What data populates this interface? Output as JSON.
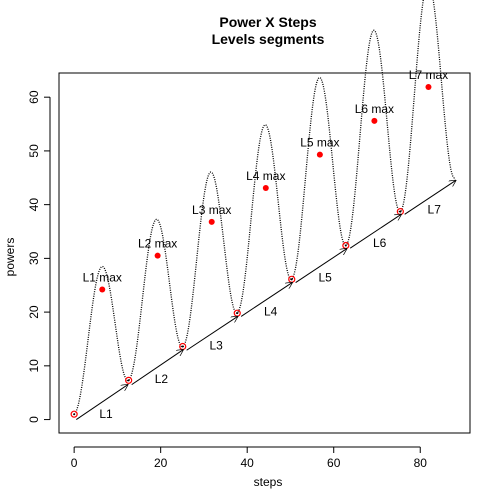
{
  "chart_data": {
    "type": "line",
    "title": "Power X Steps",
    "subtitle": "Levels segments",
    "xlabel": "steps",
    "ylabel": "powers",
    "xlim": [
      -3.5,
      91.5
    ],
    "ylim": [
      -2.5,
      64.5
    ],
    "x_ticks": [
      0,
      20,
      40,
      60,
      80
    ],
    "y_ticks": [
      0,
      10,
      20,
      30,
      40,
      50,
      60
    ],
    "grid": false,
    "legend": "none",
    "curve": {
      "x_range": [
        0,
        88
      ],
      "period": 12.57,
      "base_start": 1,
      "base_slope": 0.5,
      "amplitude_start": 11.5,
      "amplitude_slope": 0.1,
      "color": "#000000",
      "style": "dotted"
    },
    "maxima": [
      {
        "label": "L1 max",
        "x": 6.5,
        "y": 24.2
      },
      {
        "label": "L2 max",
        "x": 19.3,
        "y": 30.5
      },
      {
        "label": "L3 max",
        "x": 31.8,
        "y": 36.8
      },
      {
        "label": "L4 max",
        "x": 44.3,
        "y": 43.1
      },
      {
        "label": "L5 max",
        "x": 56.8,
        "y": 49.3
      },
      {
        "label": "L6 max",
        "x": 69.4,
        "y": 55.6
      },
      {
        "label": "L7 max",
        "x": 81.9,
        "y": 61.9
      }
    ],
    "minima": [
      {
        "x": 0,
        "y": 1.0
      },
      {
        "x": 12.6,
        "y": 7.3
      },
      {
        "x": 25.1,
        "y": 13.6
      },
      {
        "x": 37.7,
        "y": 19.8
      },
      {
        "x": 50.3,
        "y": 26.1
      },
      {
        "x": 62.8,
        "y": 32.4
      },
      {
        "x": 75.4,
        "y": 38.7
      }
    ],
    "segments": [
      {
        "label": "L1",
        "x0": 0.5,
        "y0": 0.0,
        "x1": 12.4,
        "y1": 6.5
      },
      {
        "label": "L2",
        "x0": 13.3,
        "y0": 6.5,
        "x1": 25.2,
        "y1": 13.0
      },
      {
        "label": "L3",
        "x0": 26.0,
        "y0": 12.9,
        "x1": 37.8,
        "y1": 19.2
      },
      {
        "label": "L4",
        "x0": 38.6,
        "y0": 19.2,
        "x1": 50.4,
        "y1": 25.5
      },
      {
        "label": "L5",
        "x0": 51.2,
        "y0": 25.5,
        "x1": 63.0,
        "y1": 31.8
      },
      {
        "label": "L6",
        "x0": 63.8,
        "y0": 31.9,
        "x1": 75.6,
        "y1": 38.2
      },
      {
        "label": "L7",
        "x0": 76.4,
        "y0": 38.2,
        "x1": 88.2,
        "y1": 44.5
      }
    ],
    "colors": {
      "max_point": "#ff0000",
      "min_point": "#ff0000",
      "segment": "#000000"
    }
  }
}
